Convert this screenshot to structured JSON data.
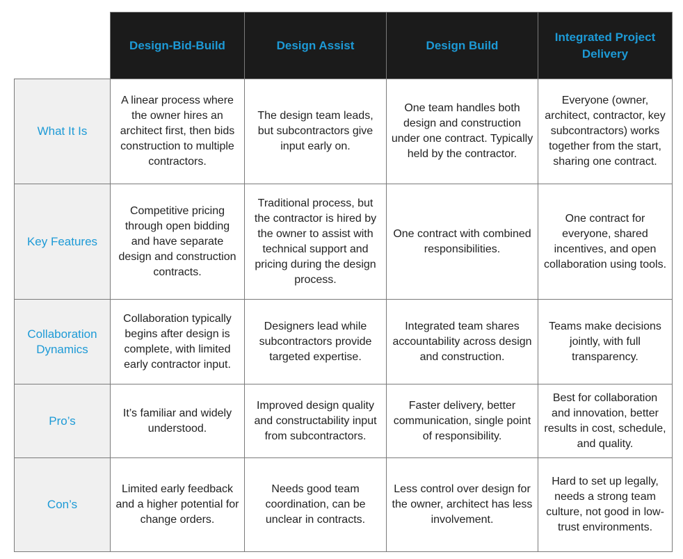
{
  "table": {
    "columns": [
      "Design-Bid-Build",
      "Design Assist",
      "Design Build",
      "Integrated Project Delivery"
    ],
    "rows": [
      {
        "label": "What It Is",
        "cells": [
          "A linear process where the owner hires an architect first, then bids construction to multiple contractors.",
          "The design team leads, but subcontractors give input early on.",
          "One team handles both design and construction under one contract. Typically held by the contractor.",
          "Everyone (owner, architect, contractor, key subcontractors) works together from the start, sharing one contract."
        ]
      },
      {
        "label": "Key Features",
        "cells": [
          "Competitive pricing through open bidding and have separate design and construction contracts.",
          "Traditional process, but the contractor is hired by the owner to assist with technical support and pricing during the design process.",
          "One contract with combined responsibilities.",
          "One contract for everyone, shared incentives, and open collaboration using tools."
        ]
      },
      {
        "label": "Collaboration Dynamics",
        "cells": [
          "Collaboration typically begins after design is complete, with limited early contractor input.",
          "Designers lead while subcontractors provide targeted expertise.",
          "Integrated team shares accountability across design and construction.",
          "Teams make decisions jointly, with full transparency."
        ]
      },
      {
        "label": "Pro’s",
        "cells": [
          "It’s familiar and widely understood.",
          "Improved design quality and constructability input from subcontractors.",
          "Faster delivery, better communication, single point of responsibility.",
          "Best for collaboration and innovation, better results in cost, schedule, and quality."
        ]
      },
      {
        "label": "Con’s",
        "cells": [
          "Limited early feedback and a higher potential for change orders.",
          "Needs good team coordination, can be unclear in contracts.",
          "Less control over design for the owner, architect has less involvement.",
          "Hard to set up legally, needs a strong team culture, not good in low-trust environments."
        ]
      }
    ]
  }
}
